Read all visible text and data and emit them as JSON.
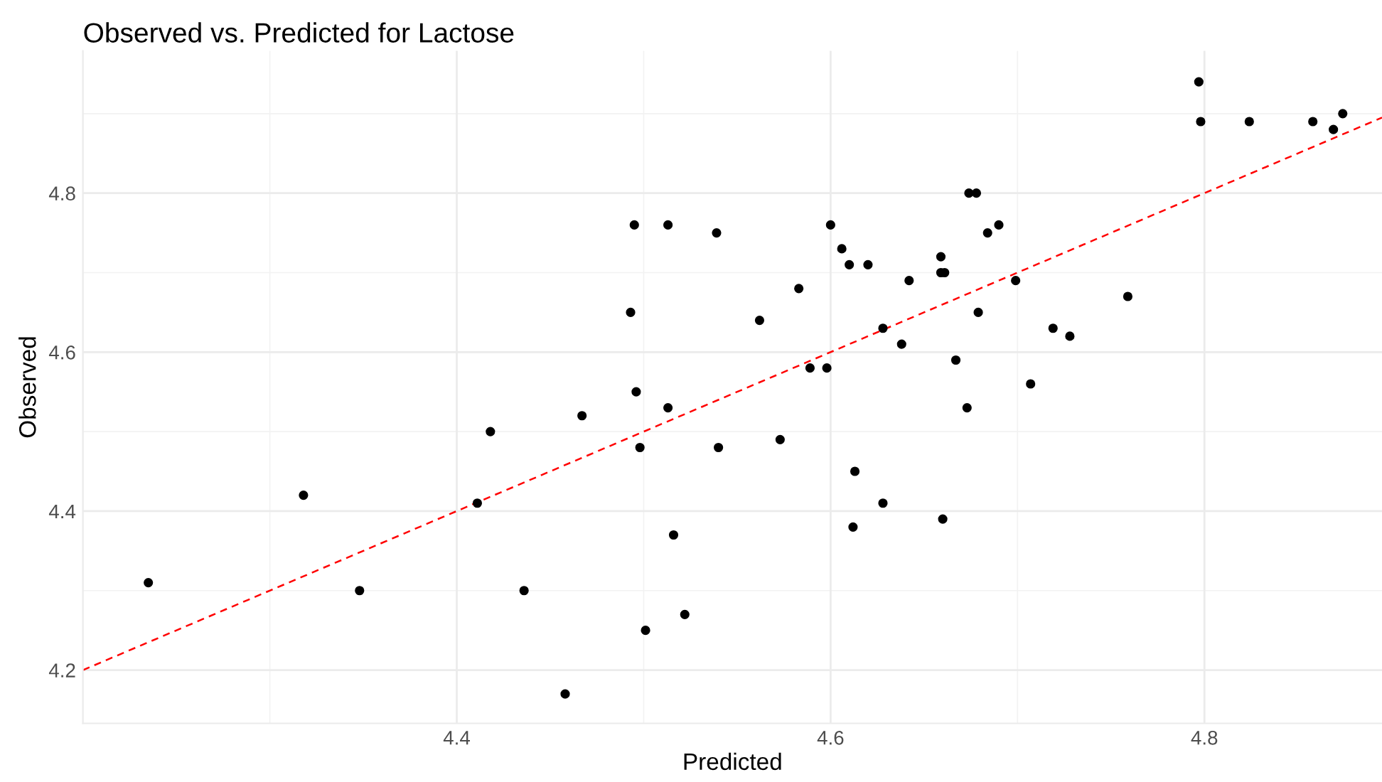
{
  "chart_data": {
    "type": "scatter",
    "title": "Observed vs. Predicted for Lactose",
    "xlabel": "Predicted",
    "ylabel": "Observed",
    "xlim": [
      4.2,
      4.895
    ],
    "ylim": [
      4.133,
      4.979
    ],
    "xticks": [
      4.4,
      4.6,
      4.8
    ],
    "yticks": [
      4.2,
      4.4,
      4.6,
      4.8
    ],
    "grid": true,
    "series": [
      {
        "marker": "circle",
        "color": "#000000",
        "x": [
          4.235,
          4.318,
          4.348,
          4.411,
          4.418,
          4.436,
          4.458,
          4.467,
          4.493,
          4.495,
          4.496,
          4.498,
          4.501,
          4.513,
          4.513,
          4.516,
          4.522,
          4.539,
          4.54,
          4.562,
          4.573,
          4.583,
          4.589,
          4.598,
          4.6,
          4.606,
          4.61,
          4.613,
          4.612,
          4.62,
          4.628,
          4.628,
          4.638,
          4.642,
          4.659,
          4.659,
          4.661,
          4.66,
          4.667,
          4.673,
          4.674,
          4.678,
          4.679,
          4.684,
          4.69,
          4.699,
          4.707,
          4.719,
          4.728,
          4.759,
          4.797,
          4.798,
          4.824,
          4.858,
          4.869,
          4.874
        ],
        "values": [
          4.31,
          4.42,
          4.3,
          4.41,
          4.5,
          4.3,
          4.17,
          4.52,
          4.65,
          4.76,
          4.55,
          4.48,
          4.25,
          4.76,
          4.53,
          4.37,
          4.27,
          4.75,
          4.48,
          4.64,
          4.49,
          4.68,
          4.58,
          4.58,
          4.76,
          4.73,
          4.71,
          4.45,
          4.38,
          4.71,
          4.63,
          4.41,
          4.61,
          4.69,
          4.72,
          4.7,
          4.7,
          4.39,
          4.59,
          4.53,
          4.8,
          4.8,
          4.65,
          4.75,
          4.76,
          4.69,
          4.56,
          4.63,
          4.62,
          4.67,
          4.94,
          4.89,
          4.89,
          4.89,
          4.88,
          4.9
        ]
      },
      {
        "type": "line",
        "color": "#ff0000",
        "line_style": "dashed",
        "x": [
          4.2,
          4.895
        ],
        "values": [
          4.2,
          4.895
        ]
      }
    ]
  }
}
